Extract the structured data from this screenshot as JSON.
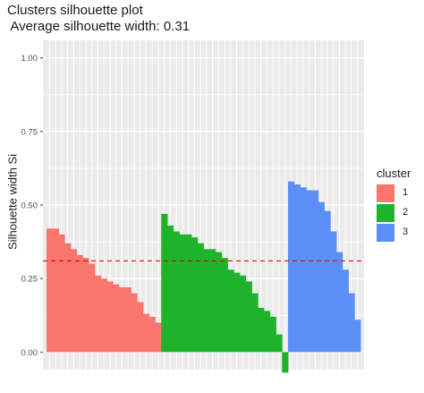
{
  "chart_data": {
    "type": "bar",
    "title": "Clusters silhouette plot",
    "subtitle": " Average silhouette width: 0.31",
    "xlabel": "",
    "ylabel": "Silhouette width Si",
    "ylim": [
      -0.06,
      1.06
    ],
    "yticks": [
      "0.00",
      "0.25",
      "0.50",
      "0.75",
      "1.00"
    ],
    "average_line": 0.31,
    "average_line_color": "#ff0000",
    "panel_background": "#ebebeb",
    "grid": true,
    "legend_title": "cluster",
    "legend_position": "right",
    "series": [
      {
        "name": "1",
        "color": "#f8766d",
        "values": [
          0.42,
          0.42,
          0.4,
          0.37,
          0.35,
          0.33,
          0.32,
          0.3,
          0.26,
          0.25,
          0.24,
          0.23,
          0.22,
          0.22,
          0.2,
          0.17,
          0.13,
          0.12,
          0.1
        ]
      },
      {
        "name": "2",
        "color": "#1fb32b",
        "values": [
          0.47,
          0.43,
          0.41,
          0.4,
          0.4,
          0.39,
          0.37,
          0.35,
          0.35,
          0.34,
          0.32,
          0.28,
          0.27,
          0.26,
          0.24,
          0.2,
          0.15,
          0.14,
          0.12,
          0.06,
          -0.07
        ]
      },
      {
        "name": "3",
        "color": "#5b8ff5",
        "values": [
          0.58,
          0.57,
          0.56,
          0.55,
          0.55,
          0.51,
          0.48,
          0.41,
          0.34,
          0.28,
          0.2,
          0.11
        ]
      }
    ]
  }
}
